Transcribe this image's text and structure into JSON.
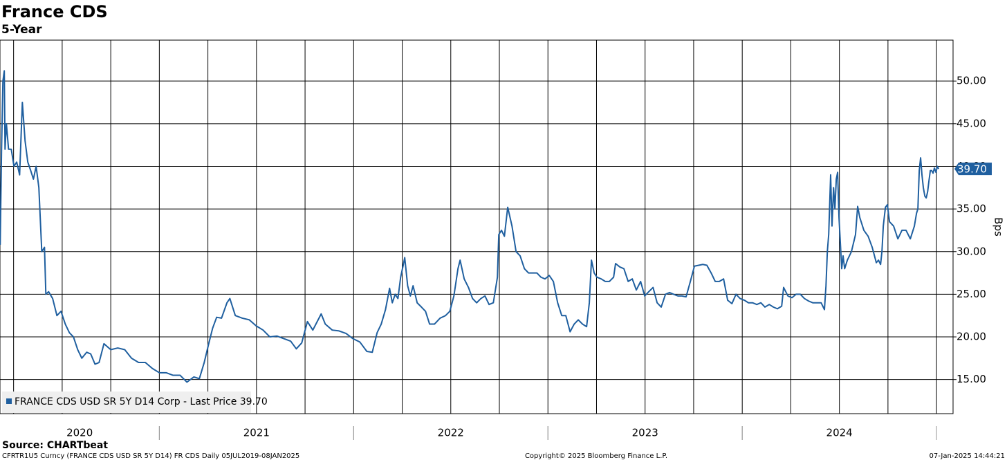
{
  "chart_data": {
    "type": "line",
    "title": "France CDS",
    "subtitle": "5-Year",
    "y_label": "Bps",
    "source": "Source: CHARTbeat",
    "footer_left": "CFRTR1U5 Curncy (FRANCE CDS USD SR 5Y D14) FR CDS  Daily 05JUL2019-08JAN2025",
    "footer_center": "Copyright© 2025 Bloomberg Finance L.P.",
    "footer_right": "07-Jan-2025 14:44:21",
    "last_price_label": "39.70",
    "grid": true,
    "xlim": [
      2020.18,
      2025.085
    ],
    "ylim": [
      11,
      54.8
    ],
    "yticks": [
      {
        "value": 15,
        "label": "15.00"
      },
      {
        "value": 20,
        "label": "20.00"
      },
      {
        "value": 25,
        "label": "25.00"
      },
      {
        "value": 30,
        "label": "30.00"
      },
      {
        "value": 35,
        "label": "35.00"
      },
      {
        "value": 40,
        "label": "40.00"
      },
      {
        "value": 45,
        "label": "45.00"
      },
      {
        "value": 50,
        "label": "50.00"
      }
    ],
    "xticks": [
      {
        "value": 2020,
        "label": "2020"
      },
      {
        "value": 2021,
        "label": "2021"
      },
      {
        "value": 2022,
        "label": "2022"
      },
      {
        "value": 2023,
        "label": "2023"
      },
      {
        "value": 2024,
        "label": "2024"
      }
    ],
    "x_gridlines": [
      2020.25,
      2020.5,
      2020.75,
      2021,
      2021.25,
      2021.5,
      2021.75,
      2022,
      2022.25,
      2022.5,
      2022.75,
      2023,
      2023.25,
      2023.5,
      2023.75,
      2024,
      2024.25,
      2024.5,
      2024.75,
      2025
    ],
    "x": [
      2020.181,
      2020.188,
      2020.195,
      2020.202,
      2020.206,
      2020.213,
      2020.224,
      2020.238,
      2020.252,
      2020.266,
      2020.281,
      2020.295,
      2020.309,
      2020.323,
      2020.338,
      2020.352,
      2020.366,
      2020.38,
      2020.395,
      2020.409,
      2020.416,
      2020.43,
      2020.451,
      2020.473,
      2020.494,
      2020.516,
      2020.537,
      2020.558,
      2020.58,
      2020.601,
      2020.626,
      2020.647,
      2020.669,
      2020.69,
      2020.715,
      2020.75,
      2020.786,
      2020.822,
      2020.857,
      2020.893,
      2020.928,
      2020.964,
      2021.0,
      2021.035,
      2021.071,
      2021.107,
      2021.142,
      2021.178,
      2021.206,
      2021.231,
      2021.252,
      2021.274,
      2021.295,
      2021.32,
      2021.348,
      2021.363,
      2021.391,
      2021.427,
      2021.463,
      2021.498,
      2021.534,
      2021.569,
      2021.605,
      2021.641,
      2021.676,
      2021.705,
      2021.733,
      2021.762,
      2021.79,
      2021.833,
      2021.854,
      2021.89,
      2021.925,
      2021.961,
      2021.996,
      2022.032,
      2022.068,
      2022.096,
      2022.121,
      2022.142,
      2022.164,
      2022.185,
      2022.199,
      2022.214,
      2022.228,
      2022.242,
      2022.256,
      2022.263,
      2022.278,
      2022.292,
      2022.306,
      2022.327,
      2022.349,
      2022.37,
      2022.391,
      2022.416,
      2022.445,
      2022.473,
      2022.495,
      2022.516,
      2022.537,
      2022.548,
      2022.569,
      2022.591,
      2022.612,
      2022.633,
      2022.655,
      2022.676,
      2022.697,
      2022.719,
      2022.74,
      2022.747,
      2022.761,
      2022.776,
      2022.793,
      2022.815,
      2022.836,
      2022.857,
      2022.879,
      2022.9,
      2022.921,
      2022.943,
      2022.964,
      2022.985,
      2023.007,
      2023.028,
      2023.05,
      2023.071,
      2023.092,
      2023.114,
      2023.135,
      2023.156,
      2023.178,
      2023.199,
      2023.213,
      2023.224,
      2023.238,
      2023.252,
      2023.274,
      2023.295,
      2023.316,
      2023.338,
      2023.348,
      2023.37,
      2023.391,
      2023.413,
      2023.434,
      2023.455,
      2023.477,
      2023.498,
      2023.519,
      2023.541,
      2023.562,
      2023.583,
      2023.605,
      2023.626,
      2023.647,
      2023.669,
      2023.69,
      2023.711,
      2023.733,
      2023.754,
      2023.776,
      2023.797,
      2023.818,
      2023.84,
      2023.861,
      2023.882,
      2023.904,
      2023.925,
      2023.947,
      2023.968,
      2023.989,
      2024.011,
      2024.032,
      2024.053,
      2024.075,
      2024.096,
      2024.117,
      2024.139,
      2024.16,
      2024.181,
      2024.203,
      2024.213,
      2024.235,
      2024.256,
      2024.277,
      2024.299,
      2024.32,
      2024.342,
      2024.363,
      2024.384,
      2024.406,
      2024.423,
      2024.431,
      2024.438,
      2024.445,
      2024.455,
      2024.462,
      2024.47,
      2024.477,
      2024.484,
      2024.491,
      2024.498,
      2024.505,
      2024.512,
      2024.519,
      2024.527,
      2024.541,
      2024.562,
      2024.583,
      2024.594,
      2024.605,
      2024.626,
      2024.648,
      2024.669,
      2024.69,
      2024.701,
      2024.712,
      2024.719,
      2024.726,
      2024.737,
      2024.747,
      2024.758,
      2024.779,
      2024.801,
      2024.822,
      2024.843,
      2024.865,
      2024.886,
      2024.897,
      2024.904,
      2024.911,
      2024.918,
      2024.925,
      2024.932,
      2024.94,
      2024.947,
      2024.954,
      2024.961,
      2024.968,
      2024.975,
      2024.982,
      2024.989,
      2024.997,
      2025.004,
      2025.011
    ],
    "series": [
      {
        "name": "FRANCE CDS USD SR 5Y D14 Corp - Last Price 39.70",
        "color": "#1f5f9f",
        "values": [
          30.8,
          42,
          50,
          51.2,
          42,
          45,
          42,
          42,
          40,
          40.5,
          39,
          47.5,
          43,
          40.5,
          39.5,
          38.5,
          40,
          37.5,
          30,
          30.5,
          25,
          25.3,
          24.5,
          22.5,
          23,
          21.5,
          20.5,
          20,
          18.5,
          17.5,
          18.2,
          18,
          16.8,
          17,
          19.2,
          18.5,
          18.7,
          18.5,
          17.5,
          17,
          17,
          16.3,
          15.8,
          15.8,
          15.5,
          15.5,
          14.7,
          15.3,
          15.1,
          17,
          19,
          21,
          22.3,
          22.2,
          24,
          24.5,
          22.5,
          22.2,
          22,
          21.3,
          20.8,
          20,
          20.1,
          19.8,
          19.5,
          18.6,
          19.3,
          21.8,
          20.8,
          22.7,
          21.5,
          20.8,
          20.7,
          20.4,
          19.8,
          19.4,
          18.3,
          18.2,
          20.5,
          21.5,
          23.2,
          25.7,
          24,
          25,
          24.5,
          27,
          28.5,
          29.3,
          26,
          24.8,
          26,
          24,
          23.5,
          23,
          21.5,
          21.5,
          22.2,
          22.5,
          23,
          24.8,
          28,
          29,
          26.8,
          25.8,
          24.5,
          24,
          24.5,
          24.8,
          23.8,
          24,
          27,
          32,
          32.5,
          31.8,
          35.2,
          33,
          30,
          29.5,
          28,
          27.5,
          27.5,
          27.5,
          27,
          26.8,
          27.2,
          26.5,
          24,
          22.5,
          22.5,
          20.6,
          21.5,
          22,
          21.5,
          21.2,
          24,
          29,
          27.5,
          27,
          26.8,
          26.5,
          26.5,
          27,
          28.6,
          28.2,
          28,
          26.5,
          26.8,
          25.5,
          26.5,
          24.8,
          25.3,
          25.8,
          24,
          23.5,
          25,
          25.2,
          25,
          24.8,
          24.8,
          24.7,
          26.5,
          28.3,
          28.4,
          28.5,
          28.4,
          27.5,
          26.5,
          26.5,
          26.8,
          24.3,
          23.9,
          25,
          24.5,
          24.3,
          24,
          24,
          23.8,
          24,
          23.5,
          23.8,
          23.5,
          23.3,
          23.6,
          25.8,
          24.8,
          24.6,
          25,
          25,
          24.5,
          24.2,
          24,
          24,
          24,
          23.2,
          26,
          30,
          32,
          39,
          33,
          37.5,
          35,
          38.5,
          39.3,
          34,
          31,
          28,
          29.5,
          28,
          29,
          30,
          32,
          35.3,
          34,
          32.5,
          31.8,
          30.5,
          28.7,
          29,
          28.5,
          30,
          33,
          35.2,
          35.5,
          33.5,
          33,
          31.5,
          32.5,
          32.5,
          31.5,
          33,
          34.5,
          35,
          39.5,
          41,
          39,
          37.5,
          36.5,
          36.3,
          37,
          38.3,
          39.5,
          39.5,
          39.2,
          39.8,
          39.3,
          40,
          39.7
        ]
      }
    ]
  }
}
